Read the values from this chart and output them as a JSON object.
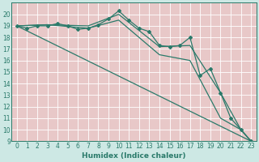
{
  "xlabel": "Humidex (Indice chaleur)",
  "bg_color": "#cde8e4",
  "grid_bg_color": "#f0d8d8",
  "line_color": "#2a7a6a",
  "grid_major_color": "#ffffff",
  "grid_minor_color": "#e8c8c8",
  "xlim": [
    -0.5,
    23.5
  ],
  "ylim": [
    9,
    21
  ],
  "xticks": [
    0,
    1,
    2,
    3,
    4,
    5,
    6,
    7,
    8,
    9,
    10,
    11,
    12,
    13,
    14,
    15,
    16,
    17,
    18,
    19,
    20,
    21,
    22,
    23
  ],
  "yticks": [
    9,
    10,
    11,
    12,
    13,
    14,
    15,
    16,
    17,
    18,
    19,
    20
  ],
  "series0_x": [
    0,
    1,
    2,
    3,
    4,
    5,
    6,
    7,
    8,
    9,
    10,
    11,
    12,
    13,
    14,
    15,
    16,
    17,
    18,
    19,
    20,
    21,
    22,
    23
  ],
  "series0_y": [
    19,
    18.8,
    19,
    19,
    19.2,
    19,
    18.7,
    18.8,
    19.1,
    19.6,
    20.3,
    19.5,
    18.8,
    18.5,
    17.3,
    17.2,
    17.3,
    18.0,
    14.7,
    15.3,
    13.2,
    11.0,
    10.0,
    9.0
  ],
  "series1_x": [
    0,
    23
  ],
  "series1_y": [
    19,
    9.0
  ],
  "series2_x": [
    0,
    3,
    7,
    10,
    14,
    17,
    20,
    22,
    23
  ],
  "series2_y": [
    19,
    19.1,
    19.0,
    20.0,
    17.2,
    17.3,
    13.2,
    10.0,
    9.0
  ],
  "series3_x": [
    0,
    3,
    7,
    10,
    14,
    17,
    20,
    22,
    23
  ],
  "series3_y": [
    19,
    19.1,
    18.8,
    19.5,
    16.5,
    16.0,
    11.0,
    10.0,
    9.0
  ]
}
